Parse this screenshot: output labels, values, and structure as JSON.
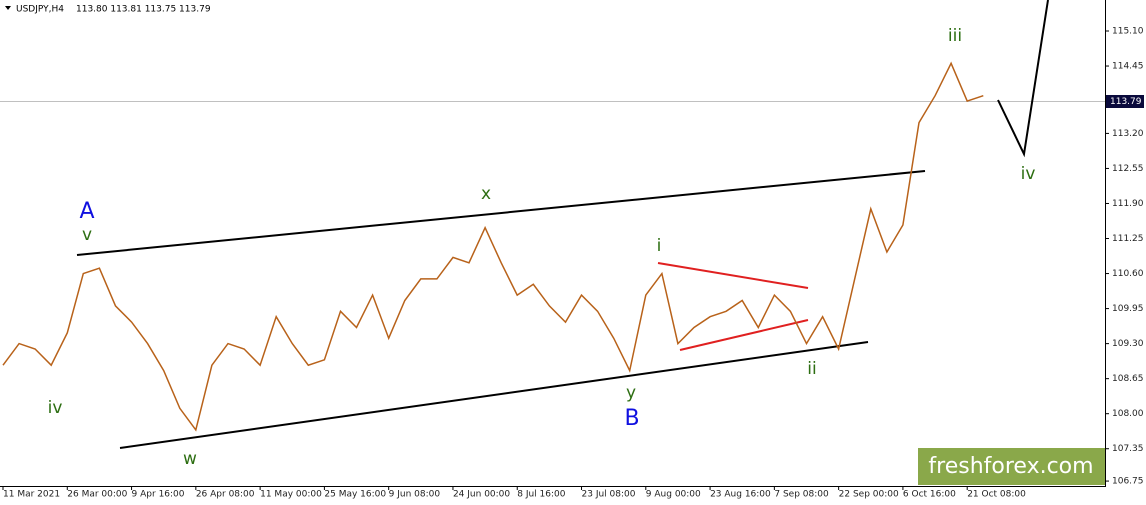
{
  "chart_data": {
    "type": "line",
    "title": "USDJPY,H4",
    "quote": "113.80 113.81 113.75 113.79",
    "current_price": 113.79,
    "watermark": "freshforex.com",
    "categories": [
      "11 Mar 2021",
      null,
      null,
      null,
      "26 Mar 00:00",
      null,
      null,
      null,
      "9 Apr 16:00",
      null,
      null,
      null,
      "26 Apr 08:00",
      null,
      null,
      null,
      "11 May 00:00",
      null,
      null,
      null,
      "25 May 16:00",
      null,
      null,
      null,
      "9 Jun 08:00",
      null,
      null,
      null,
      "24 Jun 00:00",
      null,
      null,
      null,
      "8 Jul 16:00",
      null,
      null,
      null,
      "23 Jul 08:00",
      null,
      null,
      null,
      "9 Aug 00:00",
      null,
      null,
      null,
      "23 Aug 16:00",
      null,
      null,
      null,
      "7 Sep 08:00",
      null,
      null,
      null,
      "22 Sep 00:00",
      null,
      null,
      null,
      "6 Oct 16:00",
      null,
      null,
      null,
      "21 Oct 08:00",
      null
    ],
    "series": [
      {
        "name": "USDJPY",
        "color": "#b8621a",
        "values": [
          108.9,
          109.3,
          109.2,
          108.9,
          109.5,
          110.6,
          110.7,
          110.0,
          109.7,
          109.3,
          108.8,
          108.1,
          107.7,
          108.9,
          109.3,
          109.2,
          108.9,
          109.8,
          109.3,
          108.9,
          109.0,
          109.9,
          109.6,
          110.2,
          109.4,
          110.1,
          110.5,
          110.5,
          110.9,
          110.8,
          111.45,
          110.8,
          110.2,
          110.4,
          110.0,
          109.7,
          110.2,
          109.9,
          109.4,
          108.8,
          110.2,
          110.6,
          109.3,
          109.6,
          109.8,
          109.9,
          110.1,
          109.6,
          110.2,
          109.9,
          109.3,
          109.8,
          109.2,
          110.5,
          111.8,
          111.0,
          111.5,
          113.4,
          113.9,
          114.5,
          113.8,
          113.9
        ]
      }
    ],
    "ylim": [
      106.64,
      115.675
    ],
    "yticks": [
      {
        "value": 115.1,
        "label": "115.10"
      },
      114.45,
      {
        "value": 113.2,
        "label": "113.20"
      },
      112.55,
      {
        "value": 111.9,
        "label": "111.90"
      },
      111.25,
      {
        "value": 110.6,
        "label": "110.60"
      },
      109.95,
      {
        "value": 109.3,
        "label": "109.30"
      },
      108.65,
      {
        "value": 108.0,
        "label": "108.00"
      },
      107.35,
      106.75
    ],
    "annotations": [
      {
        "text": "A",
        "color": "#1010e0"
      },
      {
        "text": "v",
        "color": "#2d6e12"
      },
      {
        "text": "iv",
        "color": "#2d6e12"
      },
      {
        "text": "w",
        "color": "#2d6e12"
      },
      {
        "text": "x",
        "color": "#2d6e12"
      },
      {
        "text": "i",
        "color": "#2d6e12"
      },
      {
        "text": "y",
        "color": "#2d6e12"
      },
      {
        "text": "B",
        "color": "#1010e0"
      },
      {
        "text": "ii",
        "color": "#2d6e12"
      },
      {
        "text": "iii",
        "color": "#2d6e12"
      },
      {
        "text": "iv",
        "color": "#2d6e12"
      }
    ]
  }
}
